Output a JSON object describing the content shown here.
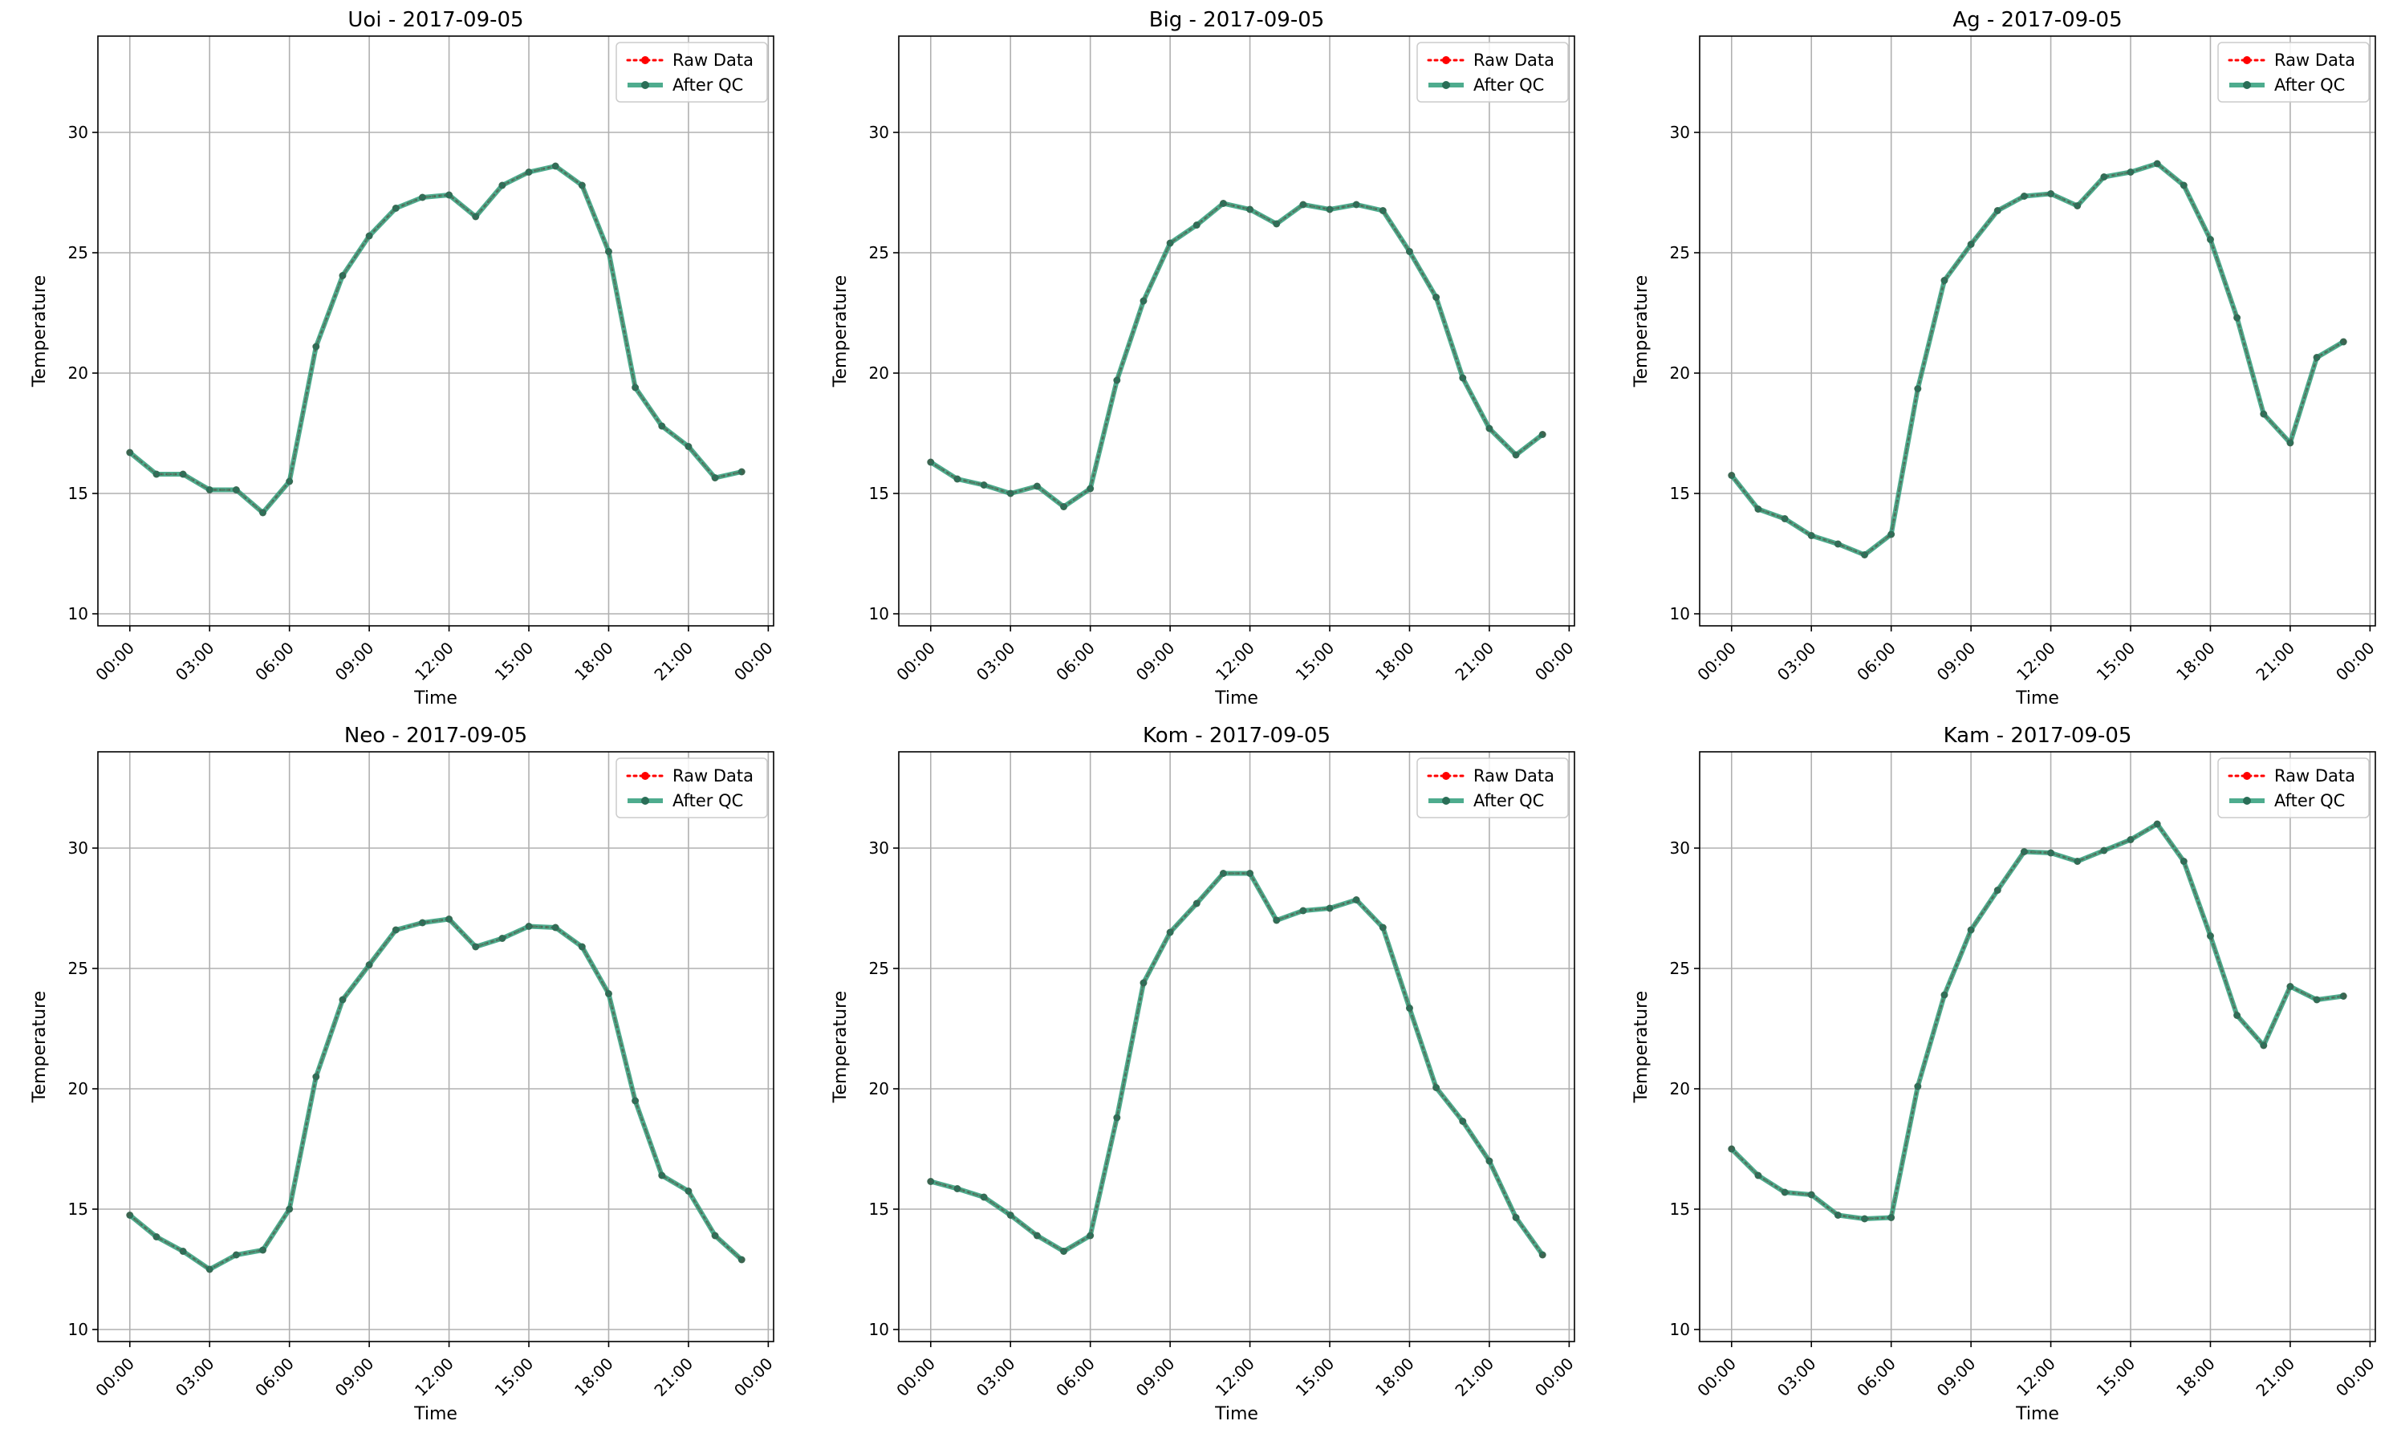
{
  "chart_data": [
    {
      "type": "line",
      "title": "Uoi - 2017-09-05",
      "xlabel": "Time",
      "ylabel": "Temperature",
      "x": [
        "00:00",
        "01:00",
        "02:00",
        "03:00",
        "04:00",
        "05:00",
        "06:00",
        "07:00",
        "08:00",
        "09:00",
        "10:00",
        "11:00",
        "12:00",
        "13:00",
        "14:00",
        "15:00",
        "16:00",
        "17:00",
        "18:00",
        "19:00",
        "20:00",
        "21:00",
        "22:00",
        "23:00"
      ],
      "x_ticks": [
        "00:00",
        "03:00",
        "06:00",
        "09:00",
        "12:00",
        "15:00",
        "18:00",
        "21:00",
        "00:00"
      ],
      "y_ticks": [
        10,
        15,
        20,
        25,
        30
      ],
      "ylim": [
        9.5,
        34
      ],
      "xlim_hours": [
        -1.2,
        24.2
      ],
      "grid": true,
      "legend_position": "top-right",
      "series": [
        {
          "name": "Raw Data",
          "color": "#ff0000",
          "style": "dotted",
          "values": [
            16.7,
            15.8,
            15.8,
            15.15,
            15.15,
            14.2,
            15.5,
            21.1,
            24.05,
            25.7,
            26.85,
            27.3,
            27.4,
            26.5,
            27.8,
            28.35,
            28.6,
            27.8,
            25.05,
            19.4,
            17.8,
            16.95,
            15.65,
            15.9
          ]
        },
        {
          "name": "After QC",
          "color": "#2f9e7a",
          "style": "solid",
          "values": [
            16.7,
            15.8,
            15.8,
            15.15,
            15.15,
            14.2,
            15.5,
            21.1,
            24.05,
            25.7,
            26.85,
            27.3,
            27.4,
            26.5,
            27.8,
            28.35,
            28.6,
            27.8,
            25.05,
            19.4,
            17.8,
            16.95,
            15.65,
            15.9
          ]
        }
      ]
    },
    {
      "type": "line",
      "title": "Big - 2017-09-05",
      "xlabel": "Time",
      "ylabel": "Temperature",
      "x": [
        "00:00",
        "01:00",
        "02:00",
        "03:00",
        "04:00",
        "05:00",
        "06:00",
        "07:00",
        "08:00",
        "09:00",
        "10:00",
        "11:00",
        "12:00",
        "13:00",
        "14:00",
        "15:00",
        "16:00",
        "17:00",
        "18:00",
        "19:00",
        "20:00",
        "21:00",
        "22:00",
        "23:00"
      ],
      "x_ticks": [
        "00:00",
        "03:00",
        "06:00",
        "09:00",
        "12:00",
        "15:00",
        "18:00",
        "21:00",
        "00:00"
      ],
      "y_ticks": [
        10,
        15,
        20,
        25,
        30
      ],
      "ylim": [
        9.5,
        34
      ],
      "xlim_hours": [
        -1.2,
        24.2
      ],
      "grid": true,
      "legend_position": "top-right",
      "series": [
        {
          "name": "Raw Data",
          "color": "#ff0000",
          "style": "dotted",
          "values": [
            16.3,
            15.6,
            15.35,
            15.0,
            15.3,
            14.45,
            15.2,
            19.7,
            23.0,
            25.4,
            26.15,
            27.05,
            26.8,
            26.2,
            27.0,
            26.8,
            27.0,
            26.75,
            25.05,
            23.15,
            19.8,
            17.7,
            16.6,
            17.45
          ]
        },
        {
          "name": "After QC",
          "color": "#2f9e7a",
          "style": "solid",
          "values": [
            16.3,
            15.6,
            15.35,
            15.0,
            15.3,
            14.45,
            15.2,
            19.7,
            23.0,
            25.4,
            26.15,
            27.05,
            26.8,
            26.2,
            27.0,
            26.8,
            27.0,
            26.75,
            25.05,
            23.15,
            19.8,
            17.7,
            16.6,
            17.45
          ]
        }
      ]
    },
    {
      "type": "line",
      "title": "Ag - 2017-09-05",
      "xlabel": "Time",
      "ylabel": "Temperature",
      "x": [
        "00:00",
        "01:00",
        "02:00",
        "03:00",
        "04:00",
        "05:00",
        "06:00",
        "07:00",
        "08:00",
        "09:00",
        "10:00",
        "11:00",
        "12:00",
        "13:00",
        "14:00",
        "15:00",
        "16:00",
        "17:00",
        "18:00",
        "19:00",
        "20:00",
        "21:00",
        "22:00",
        "23:00"
      ],
      "x_ticks": [
        "00:00",
        "03:00",
        "06:00",
        "09:00",
        "12:00",
        "15:00",
        "18:00",
        "21:00",
        "00:00"
      ],
      "y_ticks": [
        10,
        15,
        20,
        25,
        30
      ],
      "ylim": [
        9.5,
        34
      ],
      "xlim_hours": [
        -1.2,
        24.2
      ],
      "grid": true,
      "legend_position": "top-right",
      "series": [
        {
          "name": "Raw Data",
          "color": "#ff0000",
          "style": "dotted",
          "values": [
            15.75,
            14.35,
            13.95,
            13.25,
            12.9,
            12.45,
            13.3,
            19.35,
            23.85,
            25.35,
            26.75,
            27.35,
            27.45,
            26.95,
            28.15,
            28.35,
            28.7,
            27.8,
            25.55,
            22.3,
            18.3,
            17.1,
            20.65,
            21.3
          ]
        },
        {
          "name": "After QC",
          "color": "#2f9e7a",
          "style": "solid",
          "values": [
            15.75,
            14.35,
            13.95,
            13.25,
            12.9,
            12.45,
            13.3,
            19.35,
            23.85,
            25.35,
            26.75,
            27.35,
            27.45,
            26.95,
            28.15,
            28.35,
            28.7,
            27.8,
            25.55,
            22.3,
            18.3,
            17.1,
            20.65,
            21.3
          ]
        }
      ]
    },
    {
      "type": "line",
      "title": "Neo - 2017-09-05",
      "xlabel": "Time",
      "ylabel": "Temperature",
      "x": [
        "00:00",
        "01:00",
        "02:00",
        "03:00",
        "04:00",
        "05:00",
        "06:00",
        "07:00",
        "08:00",
        "09:00",
        "10:00",
        "11:00",
        "12:00",
        "13:00",
        "14:00",
        "15:00",
        "16:00",
        "17:00",
        "18:00",
        "19:00",
        "20:00",
        "21:00",
        "22:00",
        "23:00"
      ],
      "x_ticks": [
        "00:00",
        "03:00",
        "06:00",
        "09:00",
        "12:00",
        "15:00",
        "18:00",
        "21:00",
        "00:00"
      ],
      "y_ticks": [
        10,
        15,
        20,
        25,
        30
      ],
      "ylim": [
        9.5,
        34
      ],
      "xlim_hours": [
        -1.2,
        24.2
      ],
      "grid": true,
      "legend_position": "top-right",
      "series": [
        {
          "name": "Raw Data",
          "color": "#ff0000",
          "style": "dotted",
          "values": [
            14.75,
            13.85,
            13.25,
            12.5,
            13.1,
            13.3,
            15.0,
            20.5,
            23.7,
            25.15,
            26.6,
            26.9,
            27.05,
            25.9,
            26.25,
            26.75,
            26.7,
            25.9,
            23.95,
            19.5,
            16.4,
            15.75,
            13.9,
            12.9
          ]
        },
        {
          "name": "After QC",
          "color": "#2f9e7a",
          "style": "solid",
          "values": [
            14.75,
            13.85,
            13.25,
            12.5,
            13.1,
            13.3,
            15.0,
            20.5,
            23.7,
            25.15,
            26.6,
            26.9,
            27.05,
            25.9,
            26.25,
            26.75,
            26.7,
            25.9,
            23.95,
            19.5,
            16.4,
            15.75,
            13.9,
            12.9
          ]
        }
      ]
    },
    {
      "type": "line",
      "title": "Kom - 2017-09-05",
      "xlabel": "Time",
      "ylabel": "Temperature",
      "x": [
        "00:00",
        "01:00",
        "02:00",
        "03:00",
        "04:00",
        "05:00",
        "06:00",
        "07:00",
        "08:00",
        "09:00",
        "10:00",
        "11:00",
        "12:00",
        "13:00",
        "14:00",
        "15:00",
        "16:00",
        "17:00",
        "18:00",
        "19:00",
        "20:00",
        "21:00",
        "22:00",
        "23:00"
      ],
      "x_ticks": [
        "00:00",
        "03:00",
        "06:00",
        "09:00",
        "12:00",
        "15:00",
        "18:00",
        "21:00",
        "00:00"
      ],
      "y_ticks": [
        10,
        15,
        20,
        25,
        30
      ],
      "ylim": [
        9.5,
        34
      ],
      "xlim_hours": [
        -1.2,
        24.2
      ],
      "grid": true,
      "legend_position": "top-right",
      "series": [
        {
          "name": "Raw Data",
          "color": "#ff0000",
          "style": "dotted",
          "values": [
            16.15,
            15.85,
            15.5,
            14.75,
            13.9,
            13.25,
            13.9,
            18.8,
            24.4,
            26.5,
            27.7,
            28.95,
            28.95,
            27.0,
            27.4,
            27.5,
            27.85,
            26.7,
            23.35,
            20.05,
            18.65,
            17.0,
            14.65,
            13.1
          ]
        },
        {
          "name": "After QC",
          "color": "#2f9e7a",
          "style": "solid",
          "values": [
            16.15,
            15.85,
            15.5,
            14.75,
            13.9,
            13.25,
            13.9,
            18.8,
            24.4,
            26.5,
            27.7,
            28.95,
            28.95,
            27.0,
            27.4,
            27.5,
            27.85,
            26.7,
            23.35,
            20.05,
            18.65,
            17.0,
            14.65,
            13.1
          ]
        }
      ]
    },
    {
      "type": "line",
      "title": "Kam - 2017-09-05",
      "xlabel": "Time",
      "ylabel": "Temperature",
      "x": [
        "00:00",
        "01:00",
        "02:00",
        "03:00",
        "04:00",
        "05:00",
        "06:00",
        "07:00",
        "08:00",
        "09:00",
        "10:00",
        "11:00",
        "12:00",
        "13:00",
        "14:00",
        "15:00",
        "16:00",
        "17:00",
        "18:00",
        "19:00",
        "20:00",
        "21:00",
        "22:00",
        "23:00"
      ],
      "x_ticks": [
        "00:00",
        "03:00",
        "06:00",
        "09:00",
        "12:00",
        "15:00",
        "18:00",
        "21:00",
        "00:00"
      ],
      "y_ticks": [
        10,
        15,
        20,
        25,
        30
      ],
      "ylim": [
        9.5,
        34
      ],
      "xlim_hours": [
        -1.2,
        24.2
      ],
      "grid": true,
      "legend_position": "top-right",
      "series": [
        {
          "name": "Raw Data",
          "color": "#ff0000",
          "style": "dotted",
          "values": [
            17.5,
            16.4,
            15.7,
            15.6,
            14.75,
            14.6,
            14.65,
            20.1,
            23.9,
            26.6,
            28.25,
            29.85,
            29.8,
            29.45,
            29.9,
            30.35,
            31.0,
            29.45,
            26.35,
            23.05,
            21.8,
            24.25,
            23.7,
            23.85
          ]
        },
        {
          "name": "After QC",
          "color": "#2f9e7a",
          "style": "solid",
          "values": [
            17.5,
            16.4,
            15.7,
            15.6,
            14.75,
            14.6,
            14.65,
            20.1,
            23.9,
            26.6,
            28.25,
            29.85,
            29.8,
            29.45,
            29.9,
            30.35,
            31.0,
            29.45,
            26.35,
            23.05,
            21.8,
            24.25,
            23.7,
            23.85
          ]
        }
      ]
    }
  ]
}
